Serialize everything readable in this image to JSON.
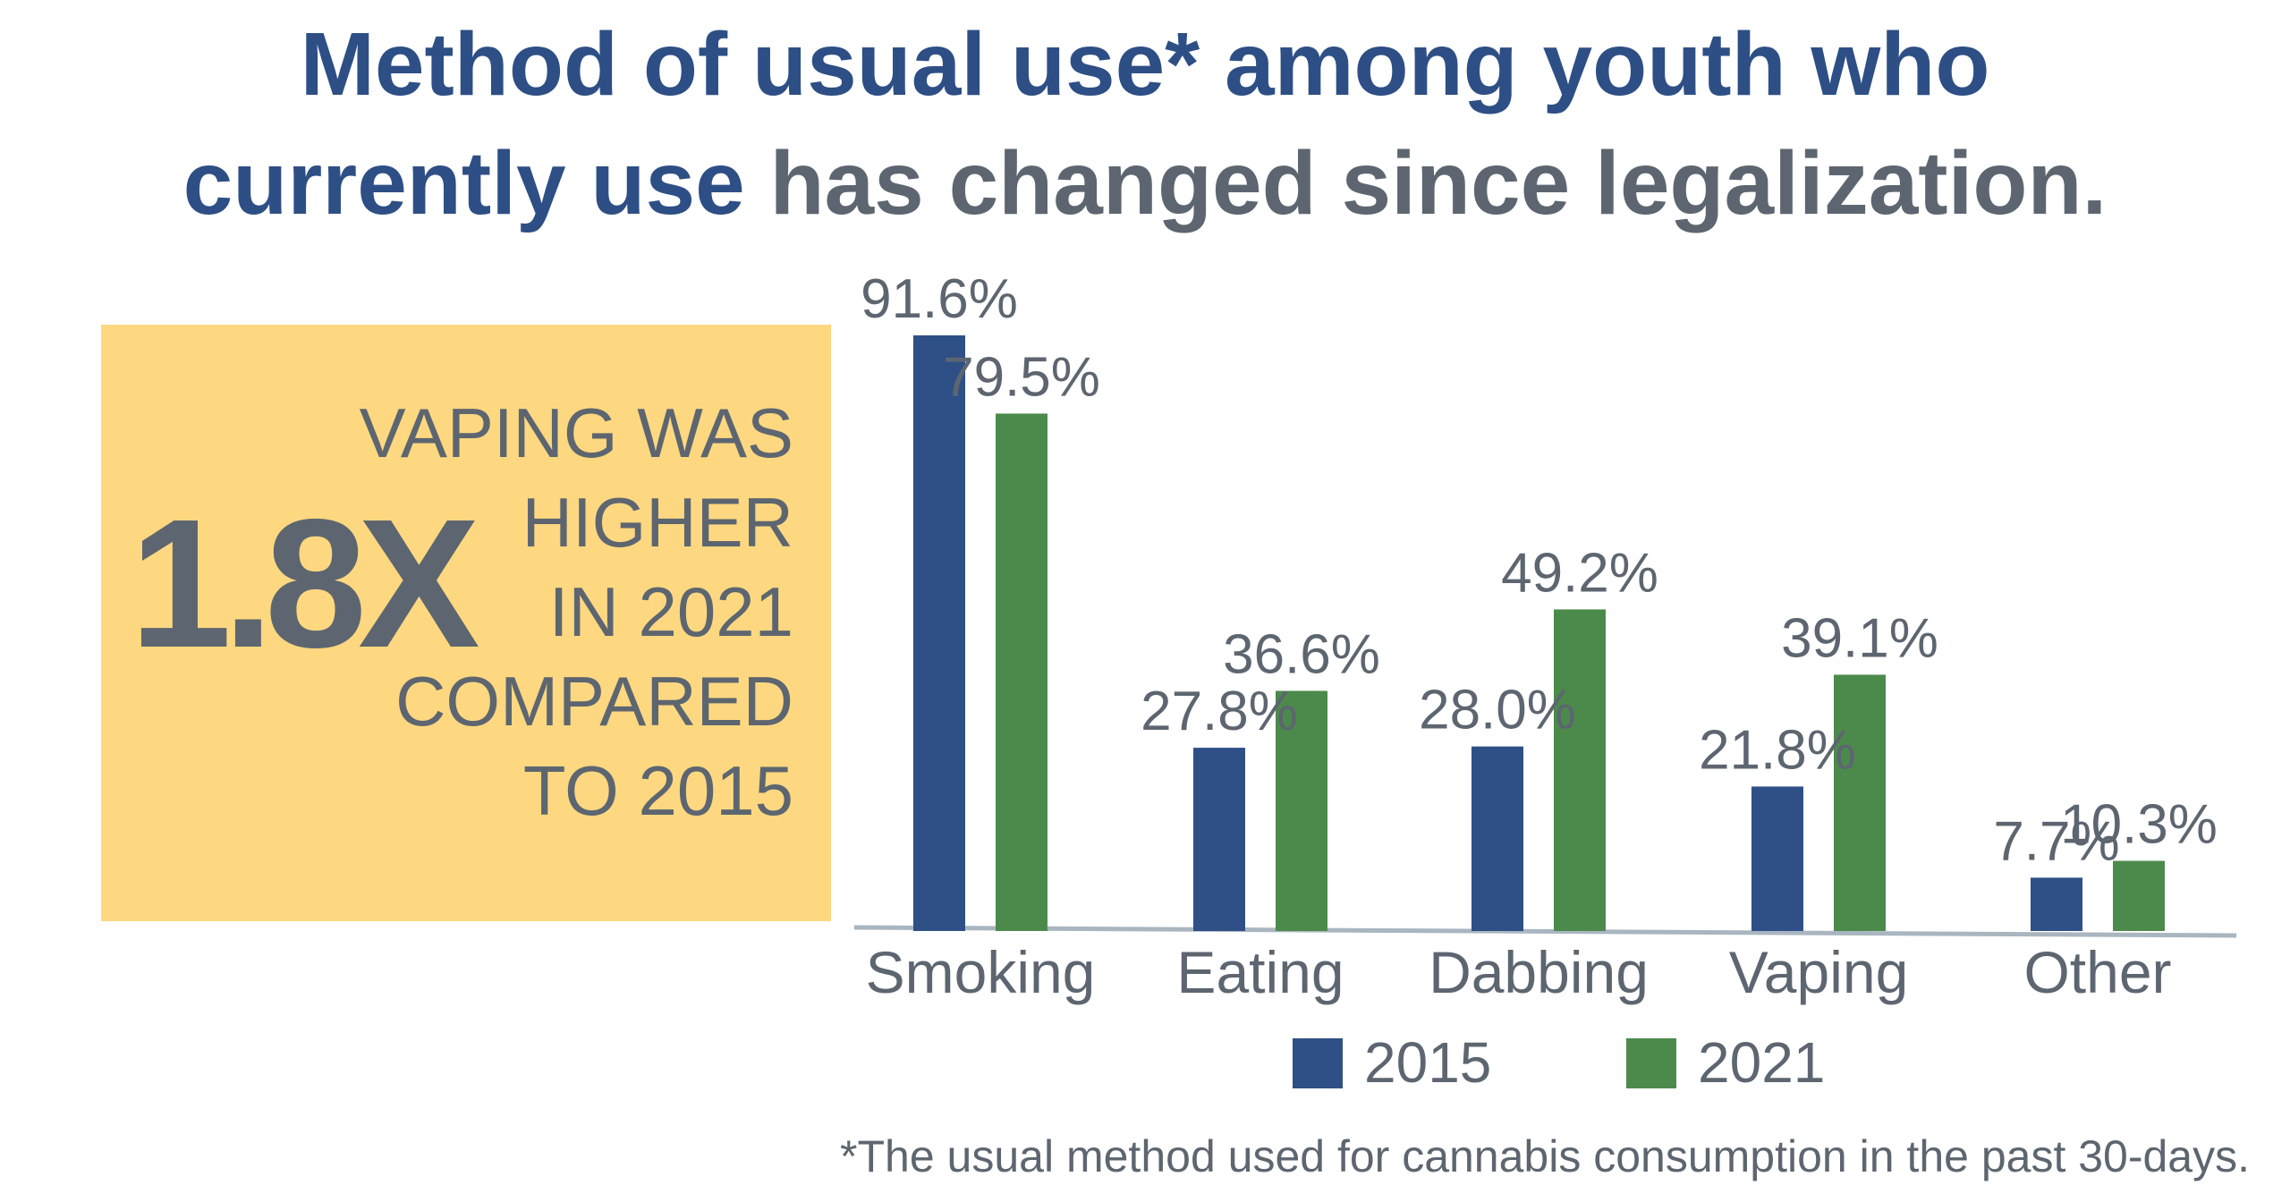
{
  "title": {
    "line1": "Method of usual use* among youth who",
    "line2_highlight": "currently use",
    "line2_rest": " has changed since legalization."
  },
  "callout": {
    "big_text": "1.8X",
    "lines": [
      "VAPING WAS",
      "HIGHER",
      "IN 2021",
      "COMPARED",
      "TO 2015"
    ]
  },
  "footnote": "*The usual method used for cannabis consumption in the past 30-days.",
  "colors": {
    "series_2015": "#2e5087",
    "series_2021": "#4c8a4b",
    "axis": "#a9b6c0",
    "text": "#5d6670",
    "title_blue": "#2e4f85",
    "callout_bg": "#fdd880"
  },
  "chart_data": {
    "type": "bar",
    "categories": [
      "Smoking",
      "Eating",
      "Dabbing",
      "Vaping",
      "Other"
    ],
    "series": [
      {
        "name": "2015",
        "values": [
          91.6,
          27.8,
          28.0,
          21.8,
          7.7
        ],
        "labels": [
          "91.6%",
          "27.8%",
          "28.0%",
          "21.8%",
          "7.7%"
        ]
      },
      {
        "name": "2021",
        "values": [
          79.5,
          36.6,
          49.2,
          39.1,
          10.3
        ],
        "labels": [
          "79.5%",
          "36.6%",
          "49.2%",
          "39.1%",
          "10.3%"
        ]
      }
    ],
    "ylim": [
      0,
      100
    ],
    "grid": false,
    "legend": "bottom"
  }
}
